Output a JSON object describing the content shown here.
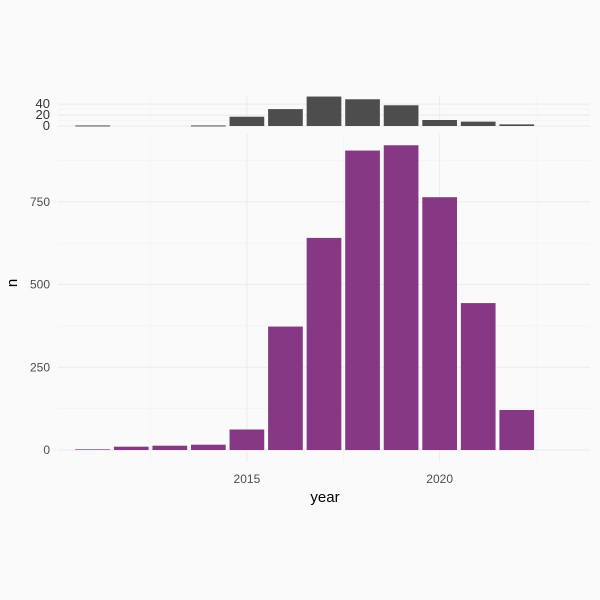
{
  "colors": {
    "background": "#fafafa",
    "top_bar_fill": "#4d4d4d",
    "main_bar_fill": "#873885",
    "grid": "#ebebeb"
  },
  "chart_data": [
    {
      "type": "bar",
      "panel": "top",
      "x": [
        2011,
        2012,
        2013,
        2014,
        2015,
        2016,
        2017,
        2018,
        2019,
        2020,
        2021,
        2022,
        2023
      ],
      "values": [
        1,
        0,
        0,
        1,
        17,
        31,
        54,
        49,
        38,
        11,
        8,
        3,
        0
      ],
      "ylim": [
        0,
        55
      ],
      "yticks": [
        0,
        20,
        40
      ],
      "grid": true
    },
    {
      "type": "bar",
      "panel": "main",
      "x": [
        2011,
        2012,
        2013,
        2014,
        2015,
        2016,
        2017,
        2018,
        2019,
        2020,
        2021,
        2022,
        2023
      ],
      "values": [
        2,
        10,
        13,
        16,
        62,
        373,
        641,
        905,
        921,
        764,
        444,
        121,
        0
      ],
      "xlabel": "year",
      "ylabel": "n",
      "xlim": [
        2010.1,
        2023.9
      ],
      "ylim": [
        0,
        955
      ],
      "xticks": [
        2015,
        2020
      ],
      "yticks": [
        0,
        250,
        500,
        750
      ],
      "grid": true
    }
  ]
}
